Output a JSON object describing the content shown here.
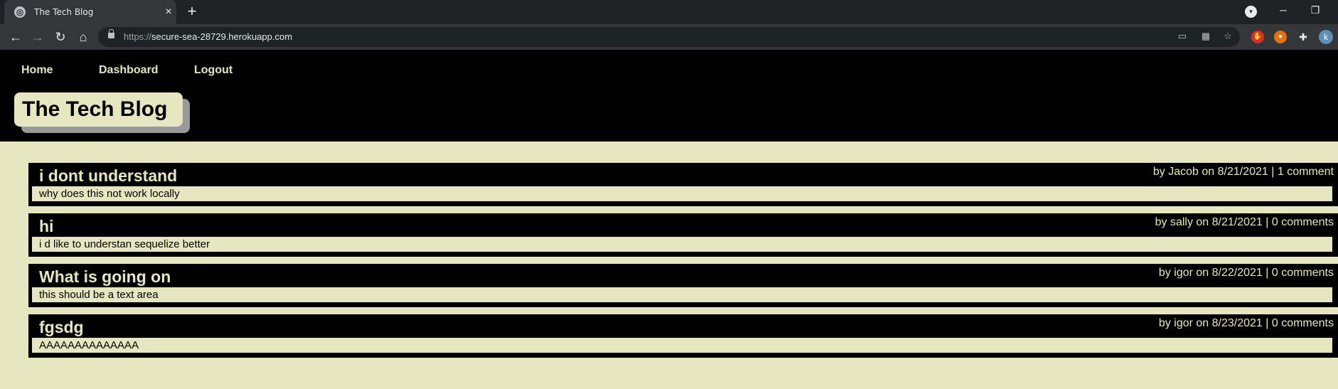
{
  "browser": {
    "tab_title": "The Tech Blog",
    "new_tab_label": "+",
    "url_scheme": "https://",
    "url_host": "secure-sea-28729.herokuapp.com",
    "profile_initial": "k"
  },
  "nav": {
    "home": "Home",
    "dashboard": "Dashboard",
    "logout": "Logout"
  },
  "site_title": "The Tech Blog",
  "posts": [
    {
      "title": "i dont understand",
      "meta": "by Jacob on 8/21/2021 | 1 comment",
      "body": "why does this not work locally"
    },
    {
      "title": "hi",
      "meta": "by sally on 8/21/2021 | 0 comments",
      "body": "i d like to understan sequelize better"
    },
    {
      "title": "What is going on",
      "meta": "by igor on 8/22/2021 | 0 comments",
      "body": "this should be a text area"
    },
    {
      "title": "fgsdg",
      "meta": "by igor on 8/23/2021 | 0 comments",
      "body": "AAAAAAAAAAAAAA"
    }
  ],
  "colors": {
    "page_bg": "#e6e6c0",
    "header_bg": "#000000",
    "accent_text": "#e6e6c0"
  }
}
